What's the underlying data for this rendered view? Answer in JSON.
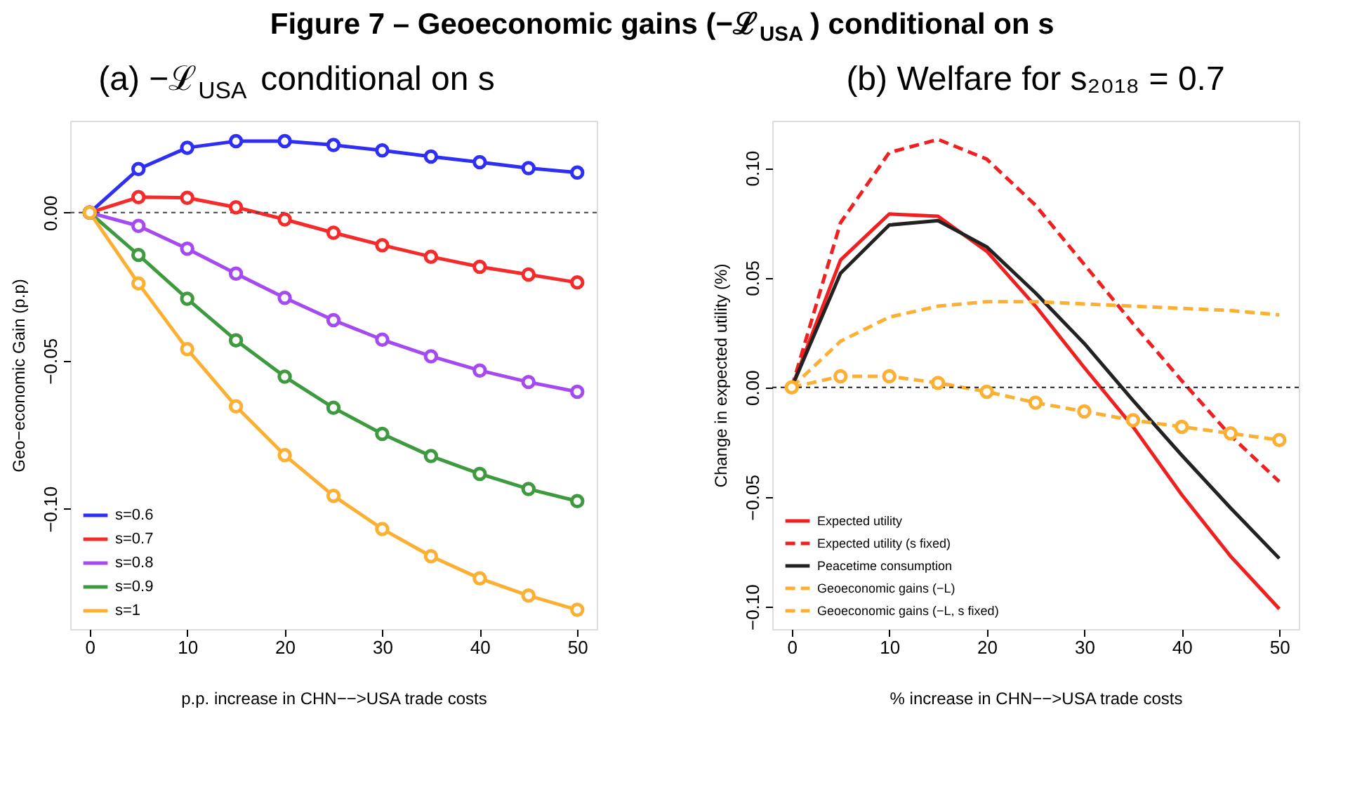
{
  "chart_data": [
    {
      "type": "line",
      "title": "Figure 7 – Geoeconomic gains (−ℒ$_{USA}$) conditional on s",
      "subtitle": "(a) −ℒ$_{USA}$ conditional on s",
      "xlabel": "p.p. increase in CHN−−>USA trade costs",
      "ylabel": "Geo−economic Gain (p.p)",
      "x": [
        0,
        5,
        10,
        15,
        20,
        25,
        30,
        35,
        40,
        45,
        50
      ],
      "series": [
        {
          "name": "s=0.6",
          "color": "#2e2ef5",
          "marker": "circle",
          "values": [
            0,
            0.0147,
            0.0219,
            0.0241,
            0.0241,
            0.0228,
            0.021,
            0.0189,
            0.017,
            0.015,
            0.0135
          ]
        },
        {
          "name": "s=0.7",
          "color": "#f52a2a",
          "marker": "circle",
          "values": [
            0,
            0.0052,
            0.005,
            0.0018,
            -0.0023,
            -0.0068,
            -0.011,
            -0.0149,
            -0.0183,
            -0.0209,
            -0.0236
          ]
        },
        {
          "name": "s=0.8",
          "color": "#a44af0",
          "marker": "circle",
          "values": [
            0,
            -0.0045,
            -0.0122,
            -0.0206,
            -0.0288,
            -0.0363,
            -0.0429,
            -0.0485,
            -0.0533,
            -0.0572,
            -0.0605
          ]
        },
        {
          "name": "s=0.9",
          "color": "#3e9a3e",
          "marker": "circle",
          "values": [
            0,
            -0.0143,
            -0.0291,
            -0.0431,
            -0.0554,
            -0.0659,
            -0.0747,
            -0.0822,
            -0.0882,
            -0.0933,
            -0.0974
          ]
        },
        {
          "name": "s=1",
          "color": "#fbb034",
          "marker": "circle",
          "values": [
            0,
            -0.0239,
            -0.0461,
            -0.0654,
            -0.0819,
            -0.0956,
            -0.1068,
            -0.116,
            -0.1235,
            -0.1293,
            -0.1341
          ]
        }
      ],
      "xlim": [
        -2,
        52
      ],
      "ylim": [
        -0.1406,
        0.031
      ],
      "xticks": [
        0,
        10,
        20,
        30,
        40,
        50
      ],
      "yticks": [
        {
          "value": 0,
          "label": "0.00"
        },
        {
          "value": -0.05,
          "label": "−0.05"
        },
        {
          "value": -0.1,
          "label": "−0.10"
        }
      ],
      "ref_lines": [
        {
          "axis": "y",
          "value": 0,
          "color": "#444444",
          "line_style": "dotted"
        }
      ],
      "legend": "bottom left",
      "grid": false,
      "line_style": "solid"
    },
    {
      "type": "line",
      "title": "(b) Welfare for s₂₀₁₈ = 0.7",
      "xlabel": "% increase in CHN−−>USA trade costs",
      "ylabel": "Change in expected utility (%)",
      "x": [
        0,
        5,
        10,
        15,
        20,
        25,
        30,
        35,
        40,
        45,
        50
      ],
      "series": [
        {
          "name": "Expected utility",
          "color": "#f02020",
          "line_style": "solid",
          "values": [
            0,
            0.058,
            0.079,
            0.078,
            0.062,
            0.037,
            0.009,
            -0.018,
            -0.049,
            -0.077,
            -0.101
          ]
        },
        {
          "name": "Expected utility (s fixed)",
          "color": "#f02020",
          "line_style": "dashed",
          "values": [
            0,
            0.075,
            0.107,
            0.113,
            0.104,
            0.083,
            0.056,
            0.029,
            0.003,
            -0.022,
            -0.043
          ]
        },
        {
          "name": "Peacetime consumption",
          "color": "#222222",
          "line_style": "solid",
          "values": [
            0,
            0.052,
            0.074,
            0.076,
            0.064,
            0.043,
            0.02,
            -0.006,
            -0.031,
            -0.055,
            -0.078
          ]
        },
        {
          "name": "Geoeconomic gains (−L)",
          "color": "#fbb034",
          "line_style": "dashed",
          "marker": "circle",
          "values": [
            0,
            0.005,
            0.005,
            0.002,
            -0.002,
            -0.007,
            -0.011,
            -0.015,
            -0.018,
            -0.021,
            -0.024
          ]
        },
        {
          "name": "Geoeconomic gains (−L, s fixed)",
          "color": "#fbb034",
          "line_style": "dashed",
          "values": [
            0,
            0.021,
            0.032,
            0.037,
            0.039,
            0.039,
            0.038,
            0.037,
            0.036,
            0.035,
            0.033
          ]
        }
      ],
      "xlim": [
        -2,
        52
      ],
      "ylim": [
        -0.1102,
        0.1215
      ],
      "xticks": [
        0,
        10,
        20,
        30,
        40,
        50
      ],
      "yticks": [
        {
          "value": -0.1,
          "label": "−0.10"
        },
        {
          "value": -0.05,
          "label": "−0.05"
        },
        {
          "value": 0,
          "label": "0.00"
        },
        {
          "value": 0.05,
          "label": "0.05"
        },
        {
          "value": 0.1,
          "label": "0.10"
        }
      ],
      "ref_lines": [
        {
          "axis": "y",
          "value": 0,
          "color": "#222222",
          "line_style": "dotted"
        }
      ],
      "legend": "bottom left",
      "grid": false
    }
  ]
}
